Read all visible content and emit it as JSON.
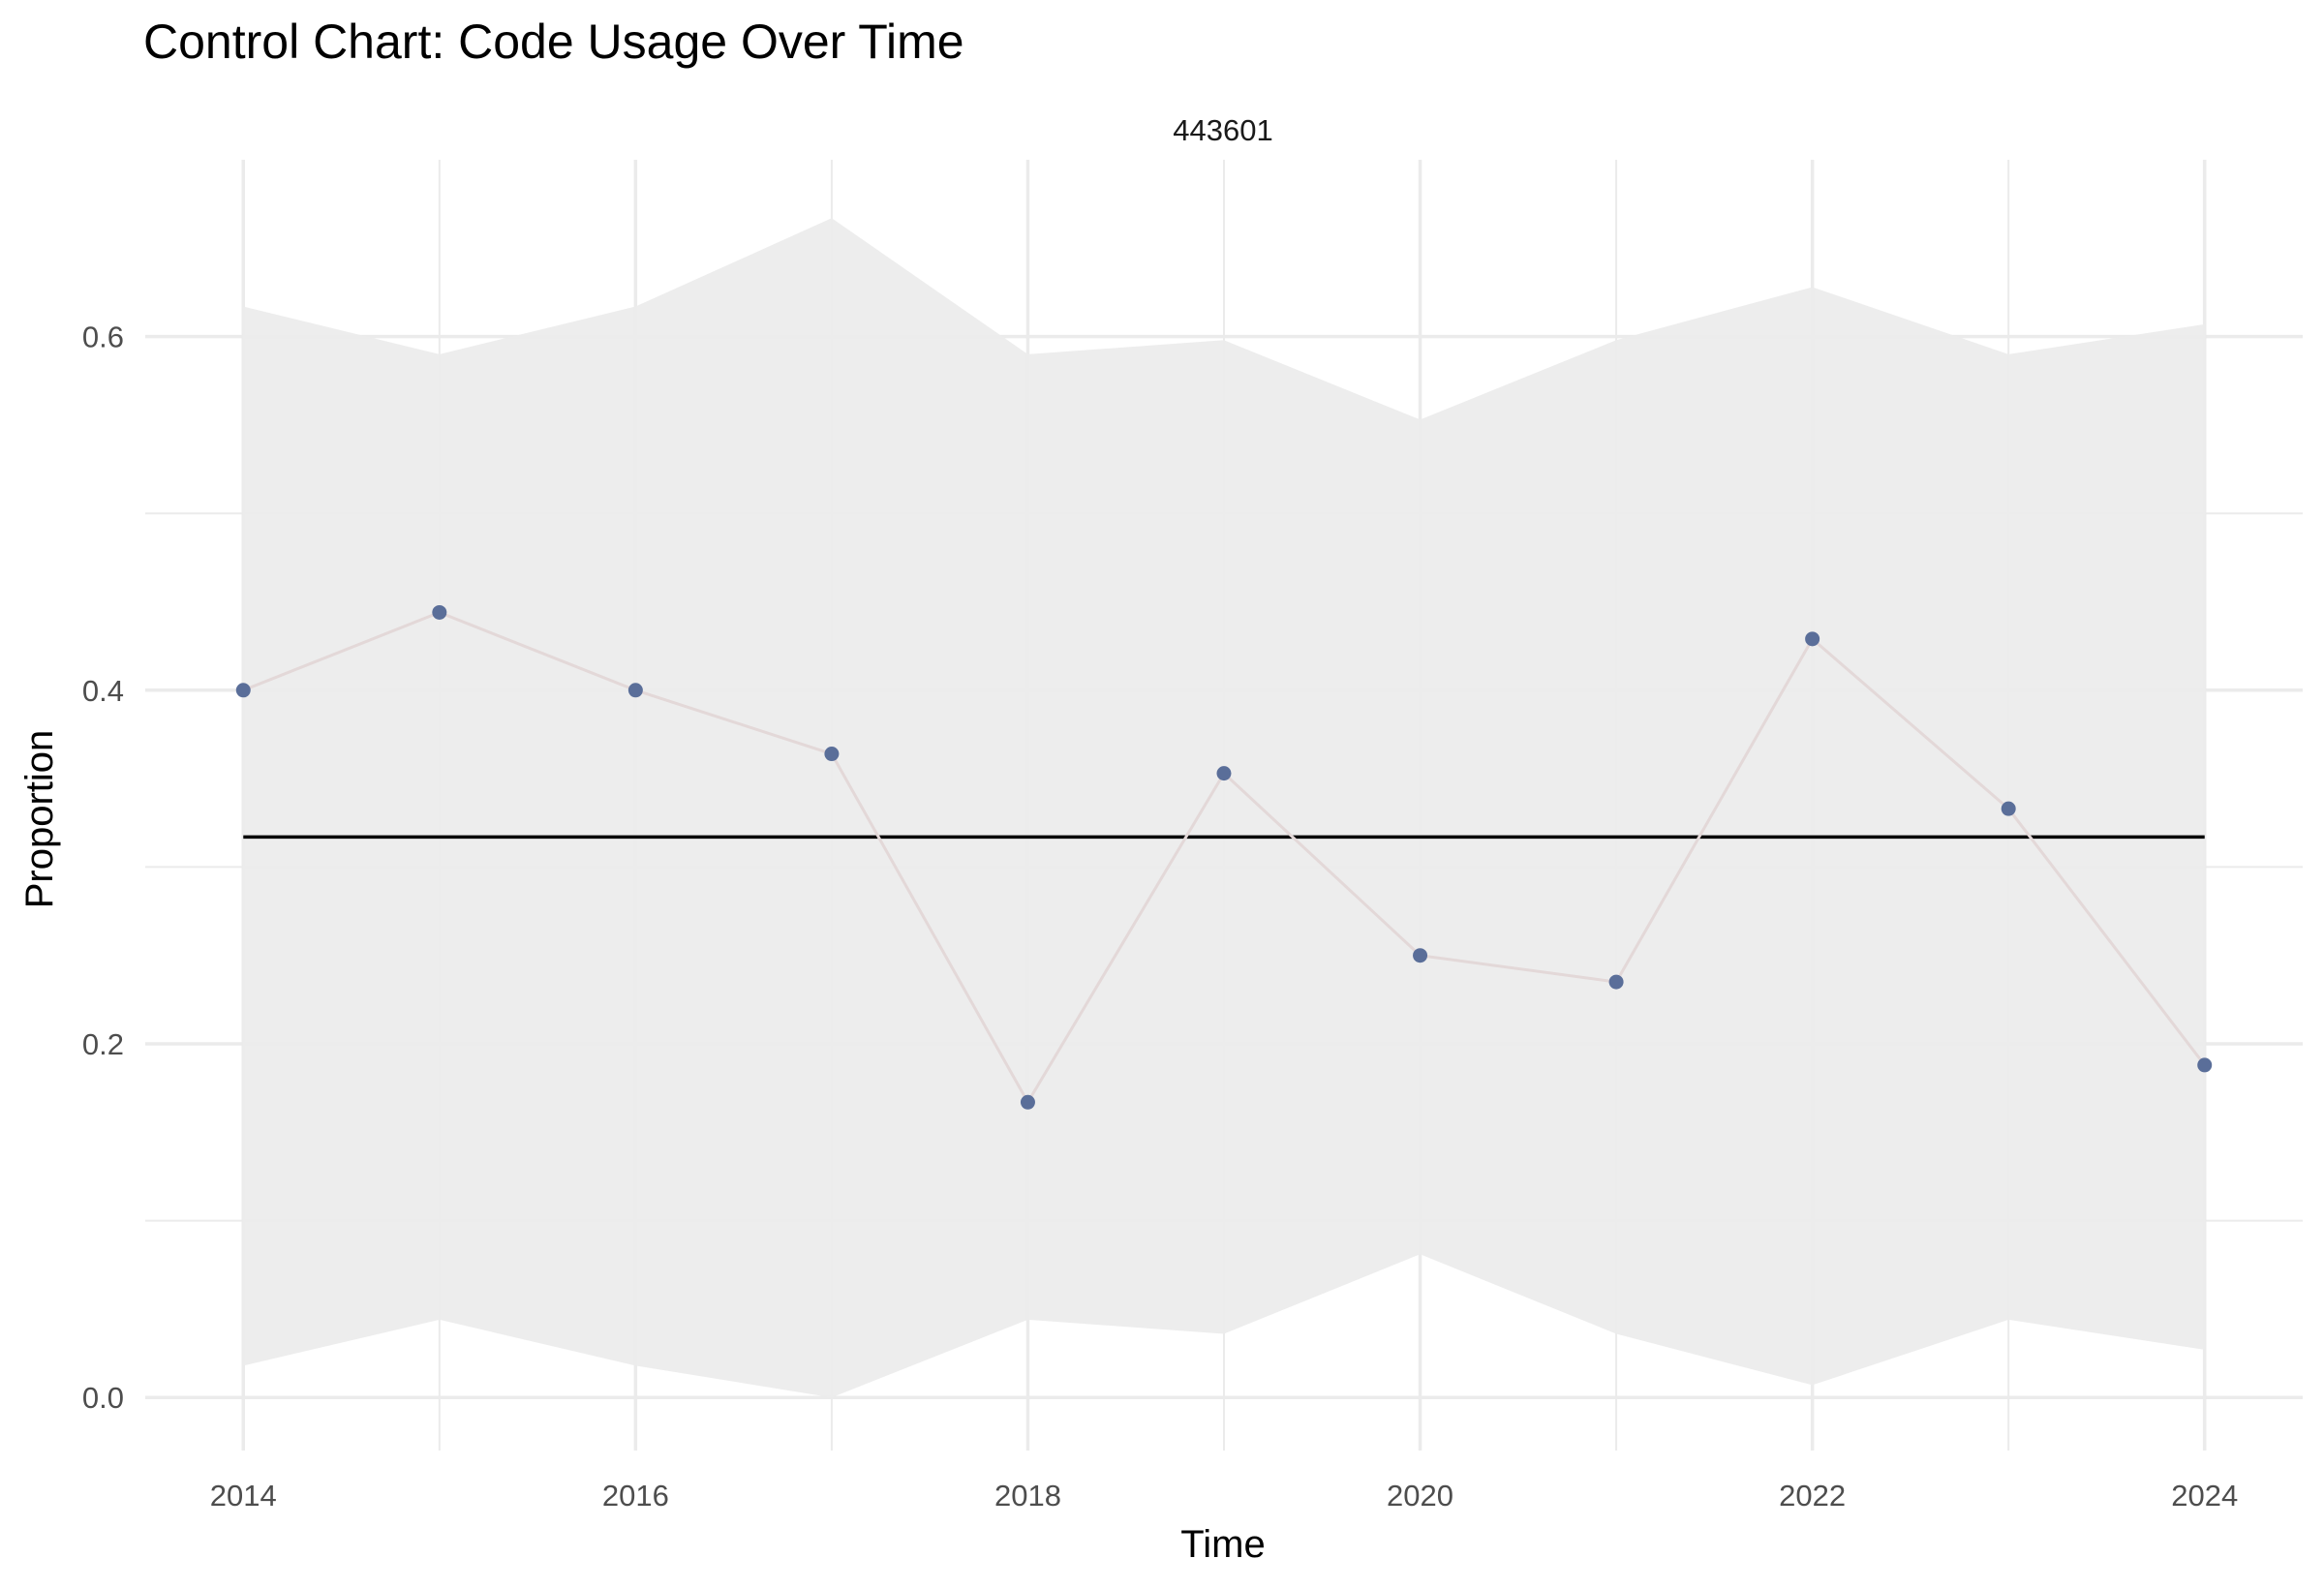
{
  "chart_data": {
    "type": "line",
    "title": "Control Chart: Code Usage Over Time",
    "facet_label": "443601",
    "xlabel": "Time",
    "ylabel": "Proportion",
    "xlim": [
      2013.5,
      2024.5
    ],
    "ylim": [
      -0.03,
      0.7
    ],
    "x_ticks": [
      2014,
      2016,
      2018,
      2020,
      2022,
      2024
    ],
    "y_ticks": [
      0.0,
      0.2,
      0.4,
      0.6
    ],
    "y_tick_labels": [
      "0.0",
      "0.2",
      "0.4",
      "0.6"
    ],
    "grid": true,
    "legend": "none",
    "x": [
      2014,
      2015,
      2016,
      2017,
      2018,
      2019,
      2020,
      2021,
      2022,
      2023,
      2024
    ],
    "series": [
      {
        "role": "proportion",
        "values": [
          0.4,
          0.444,
          0.4,
          0.364,
          0.167,
          0.353,
          0.25,
          0.235,
          0.429,
          0.333,
          0.188
        ],
        "color": "#5a6e99",
        "line_color": "#e3d8d8"
      }
    ],
    "center_line": 0.317,
    "control_limits": {
      "upper": [
        0.617,
        0.59,
        0.617,
        0.667,
        0.59,
        0.598,
        0.553,
        0.598,
        0.628,
        0.59,
        0.607
      ],
      "lower": [
        0.018,
        0.044,
        0.018,
        0.0,
        0.044,
        0.036,
        0.081,
        0.036,
        0.007,
        0.044,
        0.027
      ],
      "fill_color": "#ebebeb"
    },
    "colors": {
      "grid": "#ebebeb",
      "center_line": "#000000"
    }
  }
}
